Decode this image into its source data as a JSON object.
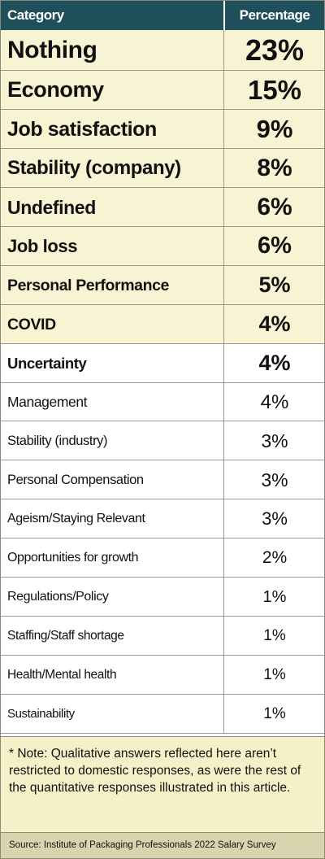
{
  "colors": {
    "header_bg": "#1f4f5a",
    "highlight_row_bg": "#f8f3d2",
    "plain_row_bg": "#ffffff",
    "note_bg": "#f5f0c8",
    "source_bg": "#d9d3ae"
  },
  "chart_data": {
    "type": "table",
    "columns": [
      "Category",
      "Percentage"
    ],
    "rows": [
      {
        "category": "Nothing",
        "percentage": "23%",
        "value": 23
      },
      {
        "category": "Economy",
        "percentage": "15%",
        "value": 15
      },
      {
        "category": "Job satisfaction",
        "percentage": "9%",
        "value": 9
      },
      {
        "category": "Stability (company)",
        "percentage": "8%",
        "value": 8
      },
      {
        "category": "Undefined",
        "percentage": "6%",
        "value": 6
      },
      {
        "category": "Job loss",
        "percentage": "6%",
        "value": 6
      },
      {
        "category": "Personal Performance",
        "percentage": "5%",
        "value": 5
      },
      {
        "category": "COVID",
        "percentage": "4%",
        "value": 4
      },
      {
        "category": "Uncertainty",
        "percentage": "4%",
        "value": 4
      },
      {
        "category": "Management",
        "percentage": "4%",
        "value": 4
      },
      {
        "category": "Stability (industry)",
        "percentage": "3%",
        "value": 3
      },
      {
        "category": "Personal Compensation",
        "percentage": "3%",
        "value": 3
      },
      {
        "category": "Ageism/Staying Relevant",
        "percentage": "3%",
        "value": 3
      },
      {
        "category": "Opportunities for growth",
        "percentage": "2%",
        "value": 2
      },
      {
        "category": "Regulations/Policy",
        "percentage": "1%",
        "value": 1
      },
      {
        "category": "Staffing/Staff shortage",
        "percentage": "1%",
        "value": 1
      },
      {
        "category": "Health/Mental health",
        "percentage": "1%",
        "value": 1
      },
      {
        "category": "Sustainability",
        "percentage": "1%",
        "value": 1
      }
    ],
    "note": "* Note: Qualitative answers reflected here aren’t restricted to domestic responses, as were the rest of the quantitative responses illustrated in this article.",
    "source": "Source: Institute of Packaging Professionals 2022 Salary Survey"
  }
}
